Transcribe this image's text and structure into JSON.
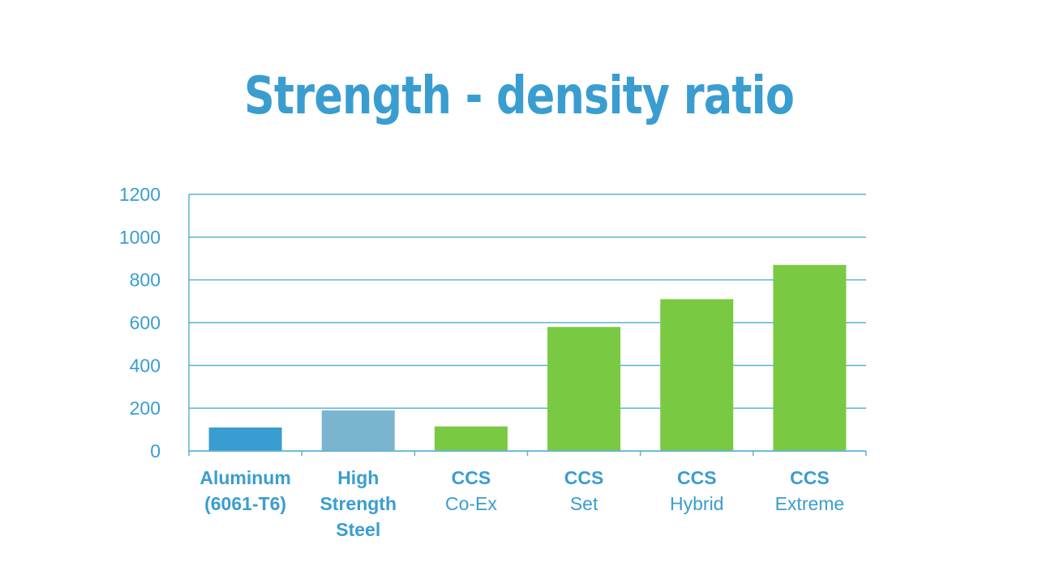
{
  "colors": {
    "accent": "#3a9dd0",
    "gridline": "#5bb2d6",
    "aluminum": "#3a9dd0",
    "steel": "#7bb4cf",
    "ccs": "#7ac943"
  },
  "chart_data": {
    "type": "bar",
    "title": "Strength - density ratio",
    "xlabel": "",
    "ylabel": "",
    "ylim": [
      0,
      1200
    ],
    "yticks": [
      0,
      200,
      400,
      600,
      800,
      1000,
      1200
    ],
    "grid": true,
    "categories": [
      {
        "lines": [
          "Aluminum",
          "(6061-T6)"
        ],
        "bold_lines": 2
      },
      {
        "lines": [
          "High",
          "Strength",
          "Steel"
        ],
        "bold_lines": 3
      },
      {
        "lines": [
          "CCS",
          "Co-Ex"
        ],
        "bold_lines": 1
      },
      {
        "lines": [
          "CCS",
          "Set"
        ],
        "bold_lines": 1
      },
      {
        "lines": [
          "CCS",
          "Hybrid"
        ],
        "bold_lines": 1
      },
      {
        "lines": [
          "CCS",
          "Extreme"
        ],
        "bold_lines": 1
      }
    ],
    "values": [
      110,
      190,
      115,
      580,
      710,
      870
    ],
    "bar_colors": [
      "#3a9dd0",
      "#7bb4cf",
      "#7ac943",
      "#7ac943",
      "#7ac943",
      "#7ac943"
    ]
  }
}
